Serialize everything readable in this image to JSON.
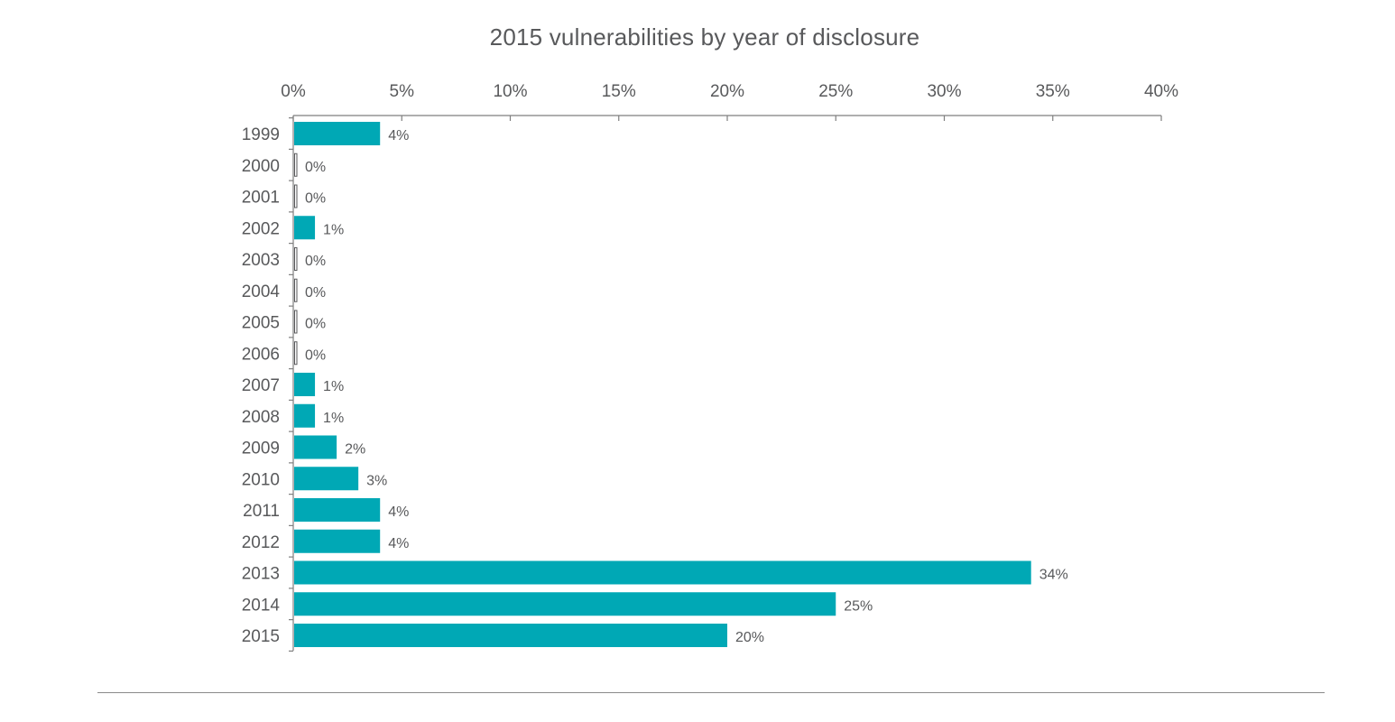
{
  "chart_data": {
    "type": "bar",
    "orientation": "horizontal",
    "title": "2015 vulnerabilities by year of disclosure",
    "xlabel": "",
    "ylabel": "",
    "xlim": [
      0,
      40
    ],
    "x_ticks": [
      "0%",
      "5%",
      "10%",
      "15%",
      "20%",
      "25%",
      "30%",
      "35%",
      "40%"
    ],
    "grid": false,
    "legend": "none",
    "categories": [
      "1999",
      "2000",
      "2001",
      "2002",
      "2003",
      "2004",
      "2005",
      "2006",
      "2007",
      "2008",
      "2009",
      "2010",
      "2011",
      "2012",
      "2013",
      "2014",
      "2015"
    ],
    "values": [
      4,
      0,
      0,
      1,
      0,
      0,
      0,
      0,
      1,
      1,
      2,
      3,
      4,
      4,
      34,
      25,
      20
    ],
    "data_labels": [
      "4%",
      "0%",
      "0%",
      "1%",
      "0%",
      "0%",
      "0%",
      "0%",
      "1%",
      "1%",
      "2%",
      "3%",
      "4%",
      "4%",
      "34%",
      "25%",
      "20%"
    ],
    "colors": {
      "bar": "#00a8b5",
      "zero_bar_outline": "#58595b",
      "axis": "#7f7f7f",
      "text": "#58595b"
    }
  }
}
